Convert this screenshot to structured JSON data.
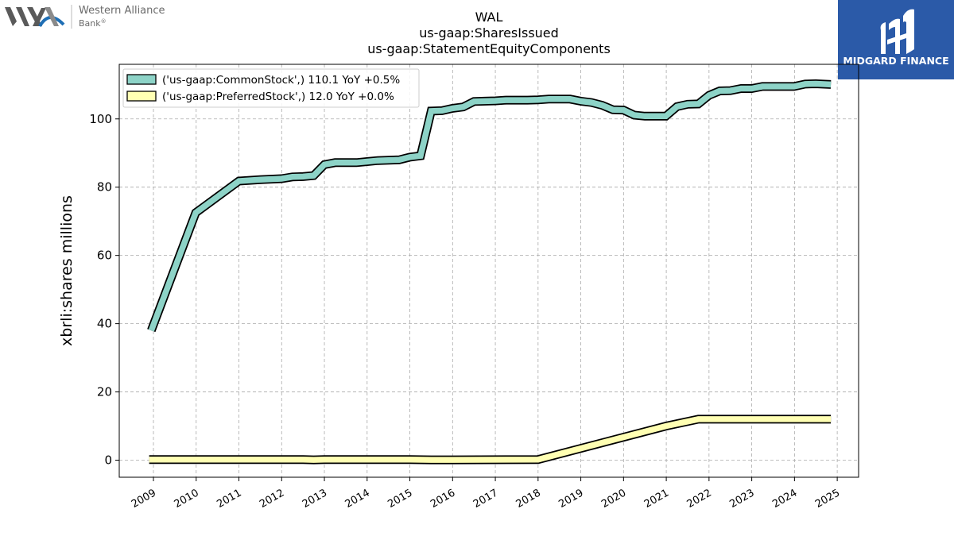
{
  "logo": {
    "name_line1": "Western Alliance",
    "name_line2": "Bank",
    "registered": "®"
  },
  "badge": {
    "text": "MIDGARD FINANCE",
    "bg_color": "#2b5aa8"
  },
  "chart_data": {
    "type": "line",
    "title": [
      "WAL",
      "us-gaap:SharesIssued",
      "us-gaap:StatementEquityComponents"
    ],
    "xlabel": "",
    "ylabel": "xbrli:shares millions",
    "xlim": [
      2008.2,
      2025.5
    ],
    "ylim": [
      -5,
      116
    ],
    "yticks": [
      0,
      20,
      40,
      60,
      80,
      100
    ],
    "xticks": [
      2009,
      2010,
      2011,
      2012,
      2013,
      2014,
      2015,
      2016,
      2017,
      2018,
      2019,
      2020,
      2021,
      2022,
      2023,
      2024,
      2025
    ],
    "grid": true,
    "legend_position": "upper-left",
    "series": [
      {
        "name": "('us-gaap:CommonStock',) 110.1 YoY +0.5%",
        "color": "#8dd3c7",
        "points": [
          [
            2008.95,
            38.0
          ],
          [
            2009.99,
            72.5
          ],
          [
            2011.0,
            81.8
          ],
          [
            2011.5,
            82.2
          ],
          [
            2012.0,
            82.5
          ],
          [
            2012.25,
            83.0
          ],
          [
            2012.5,
            83.1
          ],
          [
            2012.75,
            83.4
          ],
          [
            2013.0,
            86.6
          ],
          [
            2013.25,
            87.2
          ],
          [
            2013.75,
            87.2
          ],
          [
            2014.0,
            87.5
          ],
          [
            2014.25,
            87.8
          ],
          [
            2014.75,
            88.0
          ],
          [
            2015.0,
            88.8
          ],
          [
            2015.25,
            89.2
          ],
          [
            2015.5,
            102.3
          ],
          [
            2015.75,
            102.4
          ],
          [
            2016.0,
            103.1
          ],
          [
            2016.25,
            103.5
          ],
          [
            2016.5,
            105.1
          ],
          [
            2016.75,
            105.2
          ],
          [
            2017.0,
            105.3
          ],
          [
            2017.25,
            105.5
          ],
          [
            2017.75,
            105.5
          ],
          [
            2018.0,
            105.6
          ],
          [
            2018.25,
            105.8
          ],
          [
            2018.75,
            105.8
          ],
          [
            2019.0,
            105.2
          ],
          [
            2019.25,
            104.8
          ],
          [
            2019.5,
            104.0
          ],
          [
            2019.75,
            102.7
          ],
          [
            2020.0,
            102.6
          ],
          [
            2020.25,
            101.1
          ],
          [
            2020.5,
            100.8
          ],
          [
            2020.99,
            100.8
          ],
          [
            2021.25,
            103.6
          ],
          [
            2021.5,
            104.3
          ],
          [
            2021.75,
            104.4
          ],
          [
            2022.0,
            106.9
          ],
          [
            2022.25,
            108.2
          ],
          [
            2022.5,
            108.3
          ],
          [
            2022.75,
            108.9
          ],
          [
            2023.0,
            108.9
          ],
          [
            2023.25,
            109.5
          ],
          [
            2023.5,
            109.5
          ],
          [
            2023.99,
            109.5
          ],
          [
            2024.25,
            110.2
          ],
          [
            2024.5,
            110.3
          ],
          [
            2024.85,
            110.1
          ]
        ]
      },
      {
        "name": "('us-gaap:PreferredStock',) 12.0 YoY +0.0%",
        "color": "#ffffb3",
        "points": [
          [
            2008.9,
            0.2
          ],
          [
            2012.5,
            0.2
          ],
          [
            2012.75,
            0.1
          ],
          [
            2013.0,
            0.2
          ],
          [
            2015.0,
            0.2
          ],
          [
            2015.5,
            0.1
          ],
          [
            2016.0,
            0.1
          ],
          [
            2018.0,
            0.2
          ],
          [
            2021.0,
            10.0
          ],
          [
            2021.75,
            12.0
          ],
          [
            2022.0,
            12.0
          ],
          [
            2024.85,
            12.0
          ]
        ]
      }
    ]
  }
}
